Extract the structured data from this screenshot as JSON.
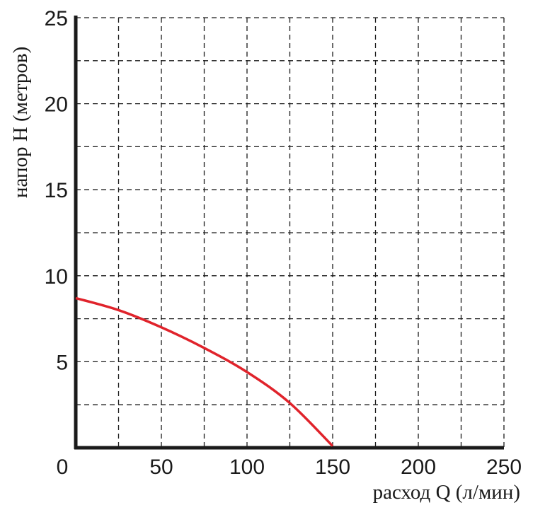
{
  "chart_data": {
    "type": "line",
    "title": "",
    "xlabel": "расход Q (л/мин)",
    "ylabel": "напор H (метров)",
    "xlim": [
      0,
      250
    ],
    "ylim": [
      0,
      25
    ],
    "x_ticks": [
      0,
      50,
      100,
      150,
      200,
      250
    ],
    "y_ticks": [
      5,
      10,
      15,
      20,
      25
    ],
    "x_tick_labels": [
      "0",
      "50",
      "100",
      "150",
      "200",
      "250"
    ],
    "y_tick_labels": [
      "5",
      "10",
      "15",
      "20",
      "25"
    ],
    "grid": true,
    "series": [
      {
        "color": "#e0232b",
        "x": [
          0,
          25,
          50,
          75,
          100,
          125,
          150
        ],
        "y": [
          8.7,
          8.0,
          7.0,
          5.8,
          4.4,
          2.6,
          0.1
        ]
      }
    ]
  }
}
